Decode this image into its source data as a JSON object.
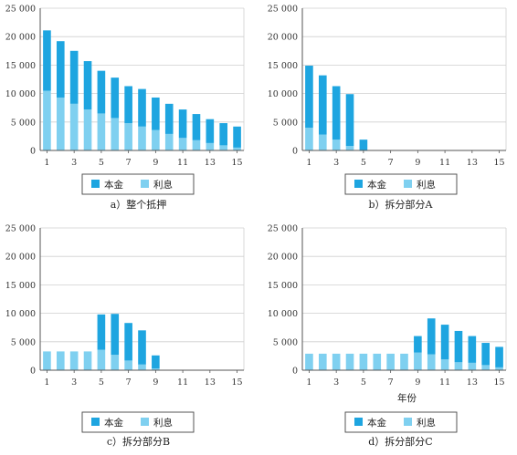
{
  "colors": {
    "principal": "#1ea5e0",
    "interest": "#7fd0f0",
    "axis": "#555555",
    "grid": "#cfcfcf"
  },
  "legend": {
    "principal": "本金",
    "interest": "利息"
  },
  "chart_data": [
    {
      "type": "bar",
      "stacked": true,
      "title": "a）整个抵押",
      "xlabel": "",
      "ylabel": "",
      "categories": [
        1,
        2,
        3,
        4,
        5,
        6,
        7,
        8,
        9,
        10,
        11,
        12,
        13,
        14,
        15
      ],
      "x_tick_labels": [
        "1",
        "3",
        "5",
        "7",
        "9",
        "11",
        "13",
        "15"
      ],
      "y_tick_labels": [
        "0",
        "5 000",
        "10 000",
        "15 000",
        "20 000",
        "25 000"
      ],
      "ylim": [
        0,
        25000
      ],
      "grid": true,
      "legend_position": "bottom",
      "series": [
        {
          "name": "利息",
          "values": [
            10500,
            9300,
            8200,
            7200,
            6500,
            5700,
            4800,
            4200,
            3600,
            2900,
            2200,
            1800,
            1300,
            900,
            500
          ]
        },
        {
          "name": "本金",
          "values": [
            10600,
            9900,
            9300,
            8500,
            7500,
            7100,
            6500,
            6600,
            5700,
            5300,
            5000,
            4600,
            4200,
            3900,
            3700
          ]
        }
      ]
    },
    {
      "type": "bar",
      "stacked": true,
      "title": "b）拆分部分A",
      "xlabel": "",
      "ylabel": "",
      "categories": [
        1,
        2,
        3,
        4,
        5,
        6,
        7,
        8,
        9,
        10,
        11,
        12,
        13,
        14,
        15
      ],
      "x_tick_labels": [
        "1",
        "3",
        "5",
        "7",
        "9",
        "11",
        "13",
        "15"
      ],
      "y_tick_labels": [
        "0",
        "5 000",
        "10 000",
        "15 000",
        "20 000",
        "25 000"
      ],
      "ylim": [
        0,
        25000
      ],
      "grid": true,
      "legend_position": "bottom",
      "series": [
        {
          "name": "利息",
          "values": [
            4000,
            2800,
            1900,
            800,
            0,
            0,
            0,
            0,
            0,
            0,
            0,
            0,
            0,
            0,
            0
          ]
        },
        {
          "name": "本金",
          "values": [
            10900,
            10400,
            9400,
            9100,
            1900,
            0,
            0,
            0,
            0,
            0,
            0,
            0,
            0,
            0,
            0
          ]
        }
      ]
    },
    {
      "type": "bar",
      "stacked": true,
      "title": "c）拆分部分B",
      "xlabel": "",
      "ylabel": "",
      "categories": [
        1,
        2,
        3,
        4,
        5,
        6,
        7,
        8,
        9,
        10,
        11,
        12,
        13,
        14,
        15
      ],
      "x_tick_labels": [
        "1",
        "3",
        "5",
        "7",
        "9",
        "11",
        "13",
        "15"
      ],
      "y_tick_labels": [
        "0",
        "5 000",
        "10 000",
        "15 000",
        "20 000",
        "25 000"
      ],
      "ylim": [
        0,
        25000
      ],
      "grid": true,
      "legend_position": "bottom",
      "series": [
        {
          "name": "利息",
          "values": [
            3300,
            3300,
            3300,
            3300,
            3600,
            2700,
            1700,
            1000,
            300,
            0,
            0,
            0,
            0,
            0,
            0
          ]
        },
        {
          "name": "本金",
          "values": [
            0,
            0,
            0,
            0,
            6200,
            7200,
            6600,
            6000,
            2300,
            0,
            0,
            0,
            0,
            0,
            0
          ]
        }
      ]
    },
    {
      "type": "bar",
      "stacked": true,
      "title": "d）拆分部分C",
      "xlabel": "年份",
      "ylabel": "",
      "categories": [
        1,
        2,
        3,
        4,
        5,
        6,
        7,
        8,
        9,
        10,
        11,
        12,
        13,
        14,
        15
      ],
      "x_tick_labels": [
        "1",
        "3",
        "5",
        "7",
        "9",
        "11",
        "13",
        "15"
      ],
      "y_tick_labels": [
        "0",
        "5 000",
        "10 000",
        "15 000",
        "20 000",
        "25 000"
      ],
      "ylim": [
        0,
        25000
      ],
      "grid": true,
      "legend_position": "bottom",
      "series": [
        {
          "name": "利息",
          "values": [
            2900,
            2900,
            2900,
            2900,
            2900,
            2900,
            2900,
            2900,
            3100,
            2800,
            1900,
            1400,
            1300,
            900,
            500
          ]
        },
        {
          "name": "本金",
          "values": [
            0,
            0,
            0,
            0,
            0,
            0,
            0,
            0,
            2900,
            6300,
            6100,
            5500,
            4700,
            3900,
            3600
          ]
        }
      ]
    }
  ]
}
